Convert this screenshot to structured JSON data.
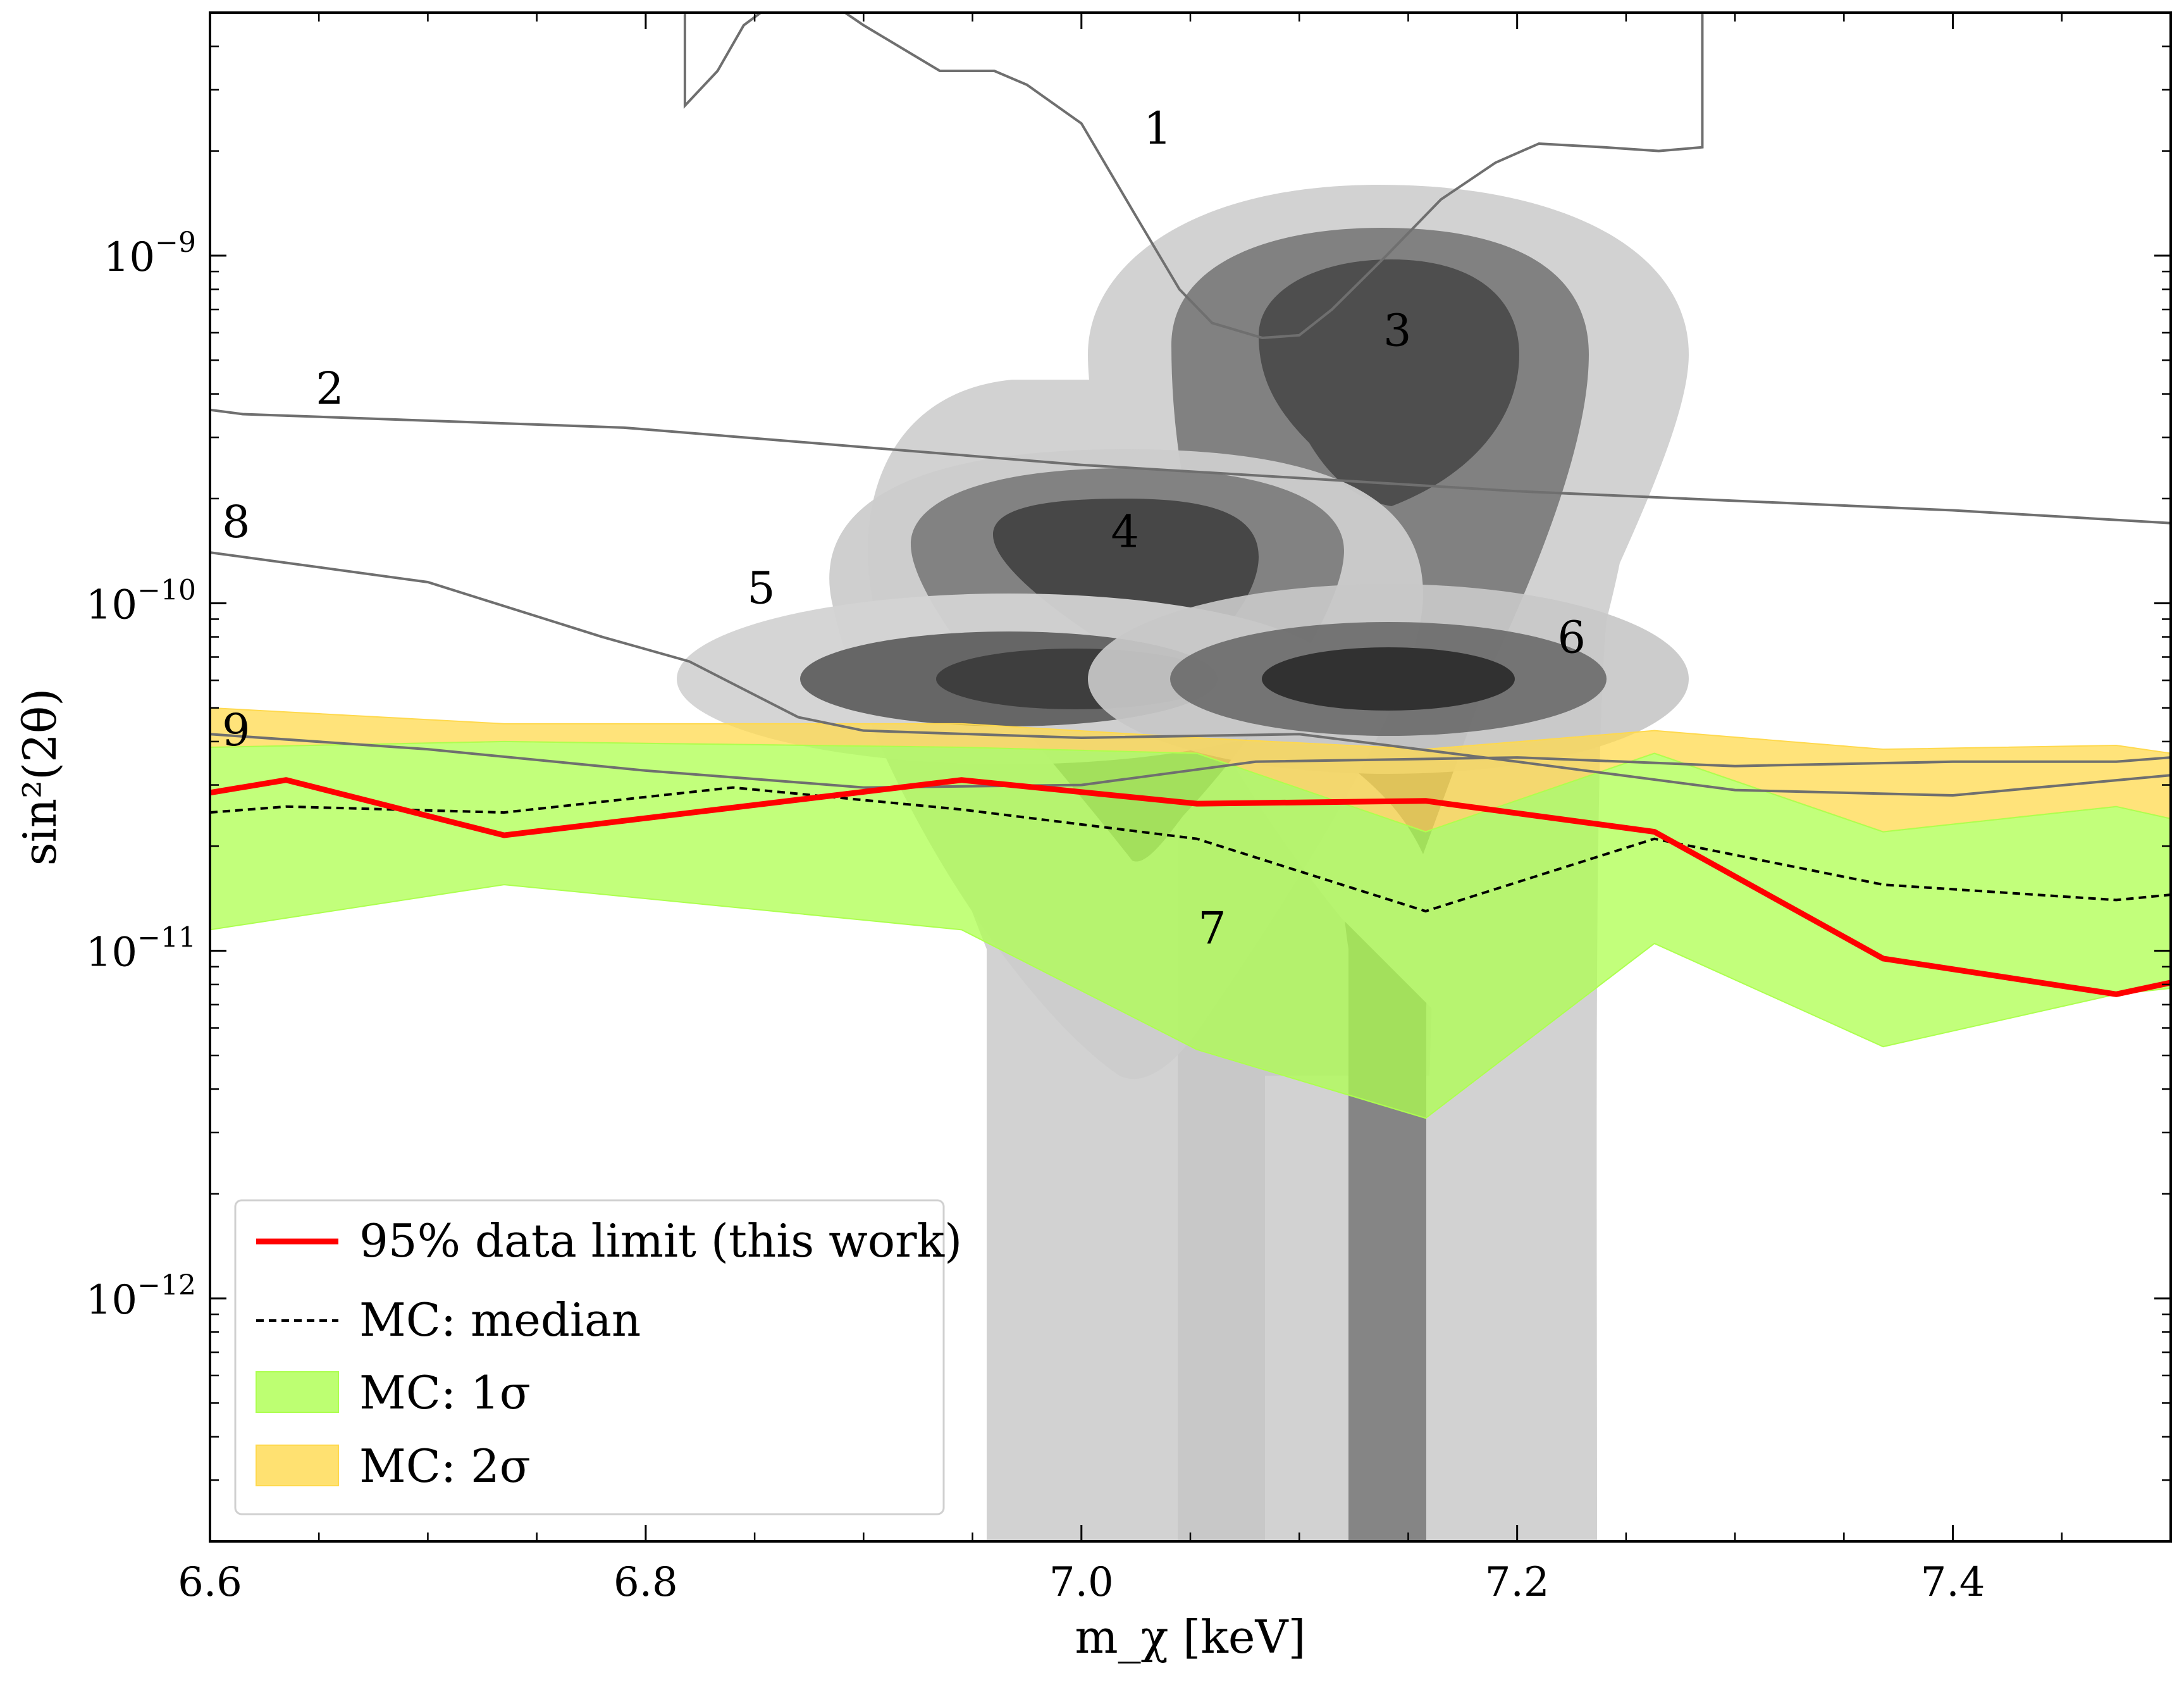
{
  "chart_data": {
    "type": "line",
    "xlabel": "m_χ [keV]",
    "ylabel": "sin²(2θ)",
    "xlim": [
      6.6,
      7.5
    ],
    "ylim": [
      2e-13,
      5e-09
    ],
    "yscale": "log",
    "x_ticks": [
      {
        "value": 6.6,
        "label": "6.6"
      },
      {
        "value": 6.8,
        "label": "6.8"
      },
      {
        "value": 7.0,
        "label": "7.0"
      },
      {
        "value": 7.2,
        "label": "7.2"
      },
      {
        "value": 7.4,
        "label": "7.4"
      }
    ],
    "y_ticks": [
      {
        "value": 1e-09,
        "base": "10",
        "exp": "−9"
      },
      {
        "value": 1e-10,
        "base": "10",
        "exp": "−10"
      },
      {
        "value": 1e-11,
        "base": "10",
        "exp": "−11"
      },
      {
        "value": 1e-12,
        "base": "10",
        "exp": "−12"
      }
    ],
    "x_minor_ticks": [
      6.65,
      6.7,
      6.75,
      6.85,
      6.9,
      6.95,
      7.05,
      7.1,
      7.15,
      7.25,
      7.3,
      7.35,
      7.45,
      7.5
    ],
    "legend_position": "lower-left",
    "series": [
      {
        "name": "95% data limit (this work)",
        "kind": "line",
        "color": "#ff0000",
        "style": "solid",
        "x": [
          6.6,
          6.635,
          6.735,
          6.945,
          7.053,
          7.158,
          7.263,
          7.368,
          7.475,
          7.5
        ],
        "y": [
          2.85e-11,
          3.1e-11,
          2.15e-11,
          3.1e-11,
          2.65e-11,
          2.7e-11,
          2.2e-11,
          9.5e-12,
          7.5e-12,
          8.1e-12
        ]
      },
      {
        "name": "MC: median",
        "kind": "line",
        "color": "#000000",
        "style": "dashed",
        "x": [
          6.6,
          6.635,
          6.735,
          6.84,
          6.945,
          7.053,
          7.158,
          7.263,
          7.368,
          7.475,
          7.5
        ],
        "y": [
          2.5e-11,
          2.6e-11,
          2.5e-11,
          2.95e-11,
          2.55e-11,
          2.1e-11,
          1.3e-11,
          2.1e-11,
          1.55e-11,
          1.4e-11,
          1.45e-11
        ]
      },
      {
        "name": "MC: 1σ",
        "kind": "band",
        "color": "#adff4f",
        "x": [
          6.6,
          6.735,
          6.945,
          7.053,
          7.158,
          7.263,
          7.368,
          7.475,
          7.5
        ],
        "low": [
          1.15e-11,
          1.55e-11,
          1.15e-11,
          5.2e-12,
          3.3e-12,
          1.05e-11,
          5.3e-12,
          7.5e-12,
          7.8e-12
        ],
        "high": [
          3.85e-11,
          4e-11,
          3.85e-11,
          3.7e-11,
          2.2e-11,
          3.7e-11,
          2.2e-11,
          2.6e-11,
          2.4e-11
        ]
      },
      {
        "name": "MC: 2σ",
        "kind": "band",
        "color": "#ffd94d",
        "x": [
          6.6,
          6.735,
          6.945,
          7.053,
          7.158,
          7.263,
          7.368,
          7.475,
          7.5
        ],
        "low": [
          3.85e-11,
          4e-11,
          3.85e-11,
          3.7e-11,
          2.2e-11,
          3.7e-11,
          2.2e-11,
          2.6e-11,
          2.4e-11
        ],
        "high": [
          5e-11,
          4.5e-11,
          4.5e-11,
          4.1e-11,
          3.8e-11,
          4.3e-11,
          3.8e-11,
          3.9e-11,
          3.7e-11
        ]
      }
    ],
    "reference_curves": [
      {
        "label": "1",
        "color": "#6f6f6f",
        "x": [
          6.818,
          6.818,
          6.833,
          6.845,
          6.86,
          6.88,
          6.9,
          6.935,
          6.96,
          6.975,
          7.0,
          7.025,
          7.045,
          7.06,
          7.083,
          7.1,
          7.115,
          7.14,
          7.165,
          7.19,
          7.21,
          7.24,
          7.265,
          7.285,
          7.285
        ],
        "y": [
          6e-08,
          2.7e-09,
          3.4e-09,
          4.6e-09,
          5.4e-09,
          5.6e-09,
          4.6e-09,
          3.4e-09,
          3.4e-09,
          3.1e-09,
          2.4e-09,
          1.3e-09,
          8e-10,
          6.4e-10,
          5.8e-10,
          5.9e-10,
          7e-10,
          1e-09,
          1.45e-09,
          1.85e-09,
          2.1e-09,
          2.05e-09,
          2e-09,
          2.05e-09,
          6e-08
        ],
        "label_at": [
          7.035,
          2.1e-09
        ]
      },
      {
        "label": "2",
        "color": "#6f6f6f",
        "x": [
          6.6,
          6.615,
          6.79,
          7.0,
          7.2,
          7.4,
          7.5
        ],
        "y": [
          3.6e-10,
          3.5e-10,
          3.2e-10,
          2.5e-10,
          2.1e-10,
          1.85e-10,
          1.7e-10
        ],
        "label_at": [
          6.655,
          3.75e-10
        ]
      },
      {
        "label": "8",
        "color": "#6f6f6f",
        "x": [
          6.6,
          6.7,
          6.78,
          6.82,
          6.87,
          6.9,
          7.0,
          7.1,
          7.2,
          7.3,
          7.4,
          7.5
        ],
        "y": [
          1.4e-10,
          1.15e-10,
          8e-11,
          6.8e-11,
          4.7e-11,
          4.3e-11,
          4.1e-11,
          4.2e-11,
          3.5e-11,
          2.9e-11,
          2.8e-11,
          3.2e-11
        ],
        "label_at": [
          6.612,
          1.55e-10
        ]
      },
      {
        "label": "9",
        "color": "#6f6f6f",
        "x": [
          6.6,
          6.7,
          6.8,
          6.9,
          7.0,
          7.08,
          7.2,
          7.3,
          7.4,
          7.475,
          7.5
        ],
        "y": [
          4.2e-11,
          3.8e-11,
          3.3e-11,
          2.95e-11,
          3e-11,
          3.5e-11,
          3.6e-11,
          3.4e-11,
          3.5e-11,
          3.5e-11,
          3.6e-11
        ],
        "label_at": [
          6.612,
          3.9e-11
        ]
      }
    ],
    "region_labels": [
      {
        "label": "3",
        "x": 7.145,
        "y": 5.5e-10
      },
      {
        "label": "4",
        "x": 7.02,
        "y": 1.45e-10
      },
      {
        "label": "5",
        "x": 6.853,
        "y": 1e-10
      },
      {
        "label": "6",
        "x": 7.225,
        "y": 7.2e-11
      },
      {
        "label": "7",
        "x": 7.06,
        "y": 1.05e-11
      }
    ]
  }
}
